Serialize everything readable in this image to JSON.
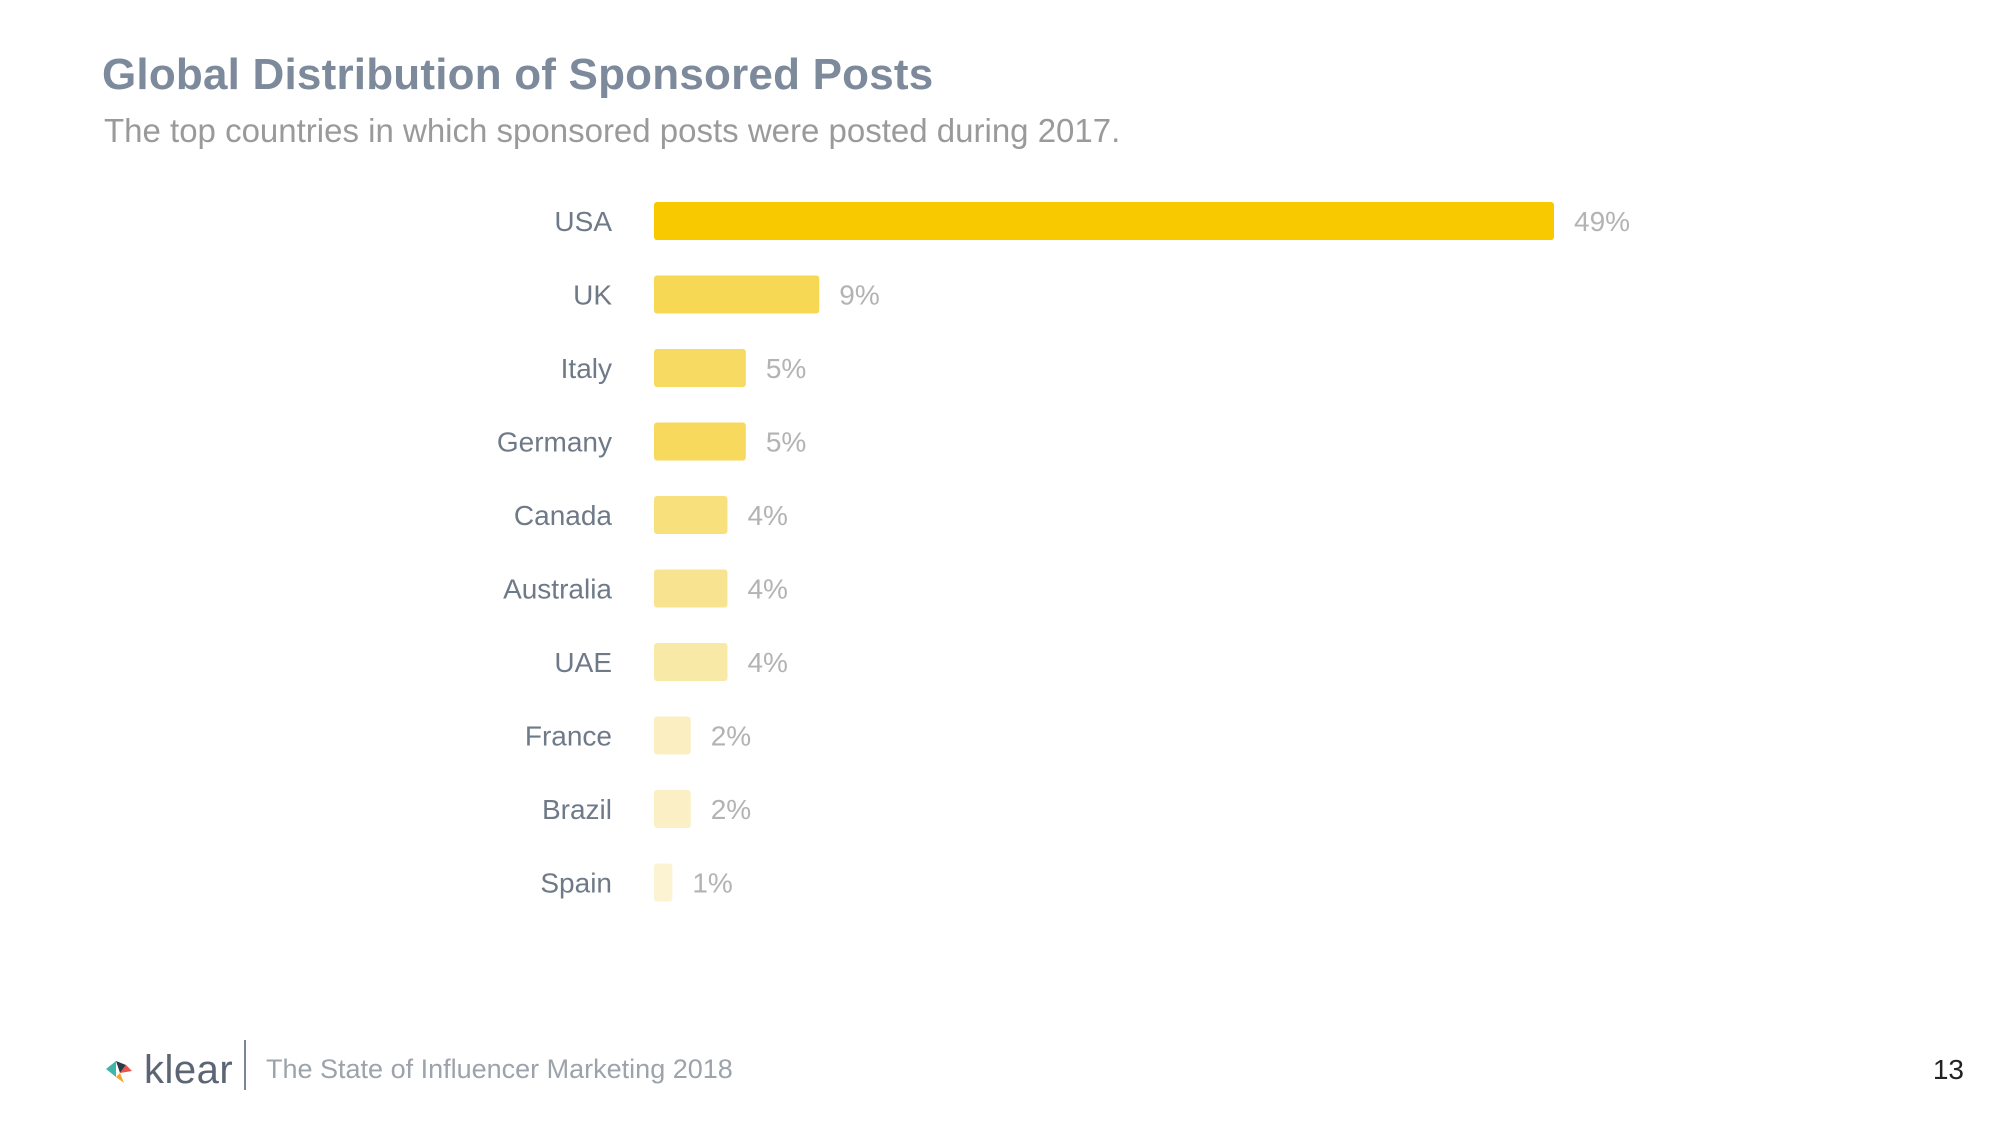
{
  "header": {
    "title": "Global Distribution of Sponsored Posts",
    "subtitle": "The top countries in which sponsored posts were posted during 2017."
  },
  "chart_data": {
    "type": "bar",
    "orientation": "horizontal",
    "categories": [
      "USA",
      "UK",
      "Italy",
      "Germany",
      "Canada",
      "Australia",
      "UAE",
      "France",
      "Brazil",
      "Spain"
    ],
    "values": [
      49,
      9,
      5,
      5,
      4,
      4,
      4,
      2,
      2,
      1
    ],
    "value_labels": [
      "49%",
      "9%",
      "5%",
      "5%",
      "4%",
      "4%",
      "4%",
      "2%",
      "2%",
      "1%"
    ],
    "bar_colors": [
      "#f9c900",
      "#f7d855",
      "#f7da61",
      "#f7d95e",
      "#f8e07d",
      "#f8e390",
      "#f9e9a7",
      "#fbefc2",
      "#fbefc5",
      "#fcf3d3"
    ],
    "xlim": [
      0,
      49
    ],
    "grid": false,
    "legend": "none"
  },
  "footer": {
    "brand": "klear",
    "report_name": "The State of Influencer Marketing 2018",
    "page_number": "13"
  }
}
